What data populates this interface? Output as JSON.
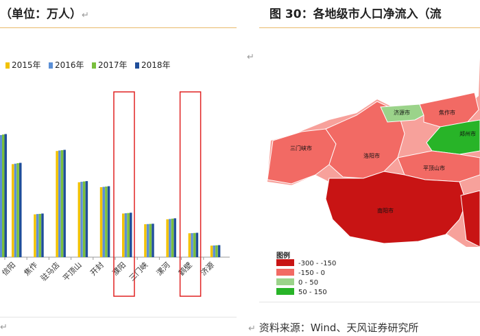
{
  "left_header": {
    "text": "（单位：万人）",
    "return_mark": "↵"
  },
  "right_header": {
    "text": "图 30：各地级市人口净流入（流",
    "return_mark": ""
  },
  "right_return_mark": "↵",
  "left_footer_mark": "↵",
  "source": {
    "text": "资料来源：Wind、天风证券研究所",
    "return_mark": "↵"
  },
  "chart_data": {
    "type": "bar",
    "categories": [
      "信阳",
      "焦作",
      "驻马店",
      "平顶山",
      "开封",
      "濮阳",
      "三门峡",
      "漯河",
      "鹤壁",
      "济源"
    ],
    "series": [
      {
        "name": "2015年",
        "color": "#f2c200",
        "values": [
          565,
          260,
          645,
          455,
          425,
          265,
          200,
          230,
          145,
          70
        ]
      },
      {
        "name": "2016年",
        "color": "#5b8fd6",
        "values": [
          568,
          262,
          648,
          458,
          427,
          267,
          201,
          232,
          146,
          71
        ]
      },
      {
        "name": "2017年",
        "color": "#79bf3c",
        "values": [
          571,
          263,
          650,
          460,
          429,
          268,
          202,
          234,
          147,
          72
        ]
      },
      {
        "name": "2018年",
        "color": "#1f4e9a",
        "values": [
          573,
          265,
          652,
          462,
          431,
          270,
          203,
          236,
          148,
          73
        ]
      }
    ],
    "partial_first_bars": [
      740,
      742,
      745,
      748
    ],
    "highlighted": [
      "濮阳",
      "鹤壁"
    ],
    "ylim": [
      0,
      1000
    ]
  },
  "map": {
    "legend_title": "图例",
    "legend": [
      {
        "label": "-300 - -150",
        "color": "#c81414"
      },
      {
        "label": "-150 - 0",
        "color": "#f26a64"
      },
      {
        "label": "0 - 50",
        "color": "#9bd38a"
      },
      {
        "label": "50 - 150",
        "color": "#28b428"
      }
    ],
    "regions": [
      {
        "name": "济源市",
        "category": "0 - 50"
      },
      {
        "name": "焦作市",
        "category": "-150 - 0"
      },
      {
        "name": "郑州市",
        "category": "50 - 150"
      },
      {
        "name": "三门峡市",
        "category": "-150 - 0"
      },
      {
        "name": "洛阳市",
        "category": "-150 - 0"
      },
      {
        "name": "平顶山市",
        "category": "-150 - 0"
      },
      {
        "name": "南阳市",
        "category": "-300 - -150"
      }
    ]
  }
}
